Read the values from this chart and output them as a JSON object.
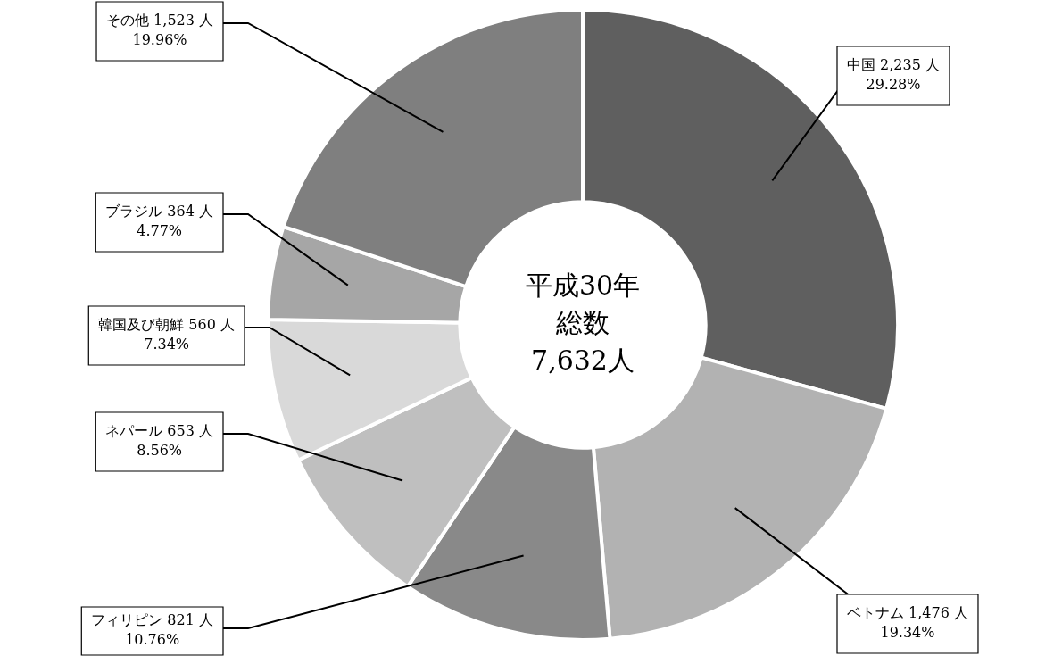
{
  "chart_data": {
    "type": "donut",
    "categories": [
      "中国",
      "ベトナム",
      "フィリピン",
      "ネパール",
      "韓国及び朝鮮",
      "ブラジル",
      "その他"
    ],
    "values": [
      2235,
      1476,
      821,
      653,
      560,
      364,
      1523
    ],
    "colors": [
      "#5f5f5f",
      "#b2b2b2",
      "#898989",
      "#bfbfbf",
      "#d9d9d9",
      "#a6a6a6",
      "#7f7f7f"
    ],
    "value_labels": [
      "2,235 人\n29.28%",
      "1,476 人\n19.34%",
      "821 人\n10.76%",
      "653 人\n8.56%",
      "560 人\n7.34%",
      "364 人\n4.77%",
      "1,523 人\n19.96%"
    ],
    "annotations": [
      "平成30年",
      "総数",
      "7,632人"
    ],
    "legend": false
  }
}
